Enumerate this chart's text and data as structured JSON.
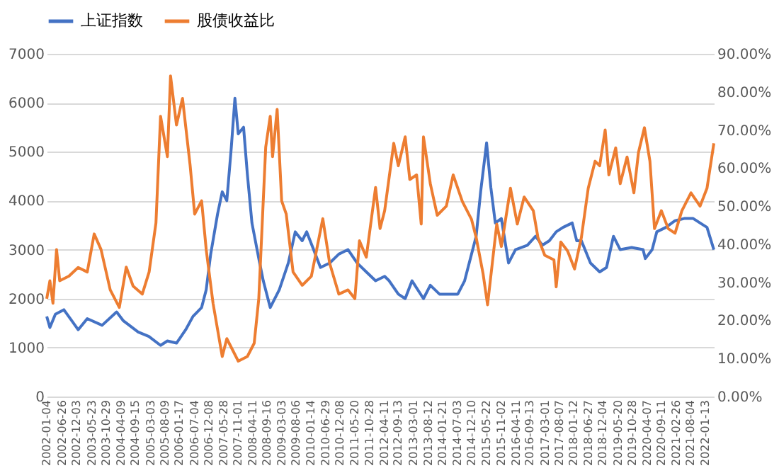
{
  "chart_data": {
    "type": "line",
    "legend": "top",
    "grid": "y",
    "line_style": "solid",
    "marker": "none",
    "xlim": [
      "2002-01-04",
      "2022-04-18"
    ],
    "xticks": [
      "2002-01-04",
      "2002-06-26",
      "2002-12-03",
      "2003-05-23",
      "2003-10-29",
      "2004-04-09",
      "2004-09-15",
      "2005-03-03",
      "2005-08-09",
      "2006-01-17",
      "2006-07-04",
      "2006-12-08",
      "2007-05-28",
      "2007-11-01",
      "2008-04-11",
      "2008-09-16",
      "2009-03-03",
      "2009-08-06",
      "2010-01-14",
      "2010-06-29",
      "2010-12-08",
      "2011-05-20",
      "2011-10-28",
      "2012-04-11",
      "2012-09-13",
      "2013-03-01",
      "2013-08-12",
      "2014-01-21",
      "2014-07-03",
      "2014-12-10",
      "2015-05-22",
      "2015-11-02",
      "2016-04-11",
      "2016-09-13",
      "2017-03-01",
      "2017-08-07",
      "2018-01-12",
      "2018-06-27",
      "2018-12-04",
      "2019-05-20",
      "2019-10-28",
      "2020-04-07",
      "2020-09-11",
      "2021-02-26",
      "2021-08-04",
      "2022-01-13"
    ],
    "ylim": [
      0,
      7000
    ],
    "yticks": [
      0,
      1000,
      2000,
      3000,
      4000,
      5000,
      6000,
      7000
    ],
    "y2lim": [
      0,
      90
    ],
    "y2ticks": [
      {
        "value": 0,
        "label": "0.00%"
      },
      {
        "value": 10,
        "label": "10.00%"
      },
      {
        "value": 20,
        "label": "20.00%"
      },
      {
        "value": 30,
        "label": "30.00%"
      },
      {
        "value": 40,
        "label": "40.00%"
      },
      {
        "value": 50,
        "label": "50.00%"
      },
      {
        "value": 60,
        "label": "60.00%"
      },
      {
        "value": 70,
        "label": "70.00%"
      },
      {
        "value": 80,
        "label": "80.00%"
      },
      {
        "value": 90,
        "label": "90.00%"
      }
    ],
    "series": [
      {
        "name": "上证指数",
        "color": "#4472c4",
        "x": [
          "2002-01-04",
          "2002-02-08",
          "2002-04-10",
          "2002-07-13",
          "2002-10-10",
          "2002-12-19",
          "2003-03-30",
          "2003-09-11",
          "2004-02-19",
          "2004-05-05",
          "2004-10-15",
          "2005-02-11",
          "2005-06-21",
          "2005-09-05",
          "2005-12-15",
          "2006-03-27",
          "2006-06-16",
          "2006-09-20",
          "2006-11-10",
          "2006-12-30",
          "2007-03-16",
          "2007-05-07",
          "2007-06-27",
          "2007-08-16",
          "2007-09-25",
          "2007-11-01",
          "2007-12-30",
          "2008-02-10",
          "2008-04-01",
          "2008-06-16",
          "2008-08-05",
          "2008-10-21",
          "2009-01-30",
          "2009-05-10",
          "2009-07-26",
          "2009-10-11",
          "2009-11-30",
          "2010-02-15",
          "2010-05-02",
          "2010-08-12",
          "2010-11-22",
          "2011-03-04",
          "2011-06-13",
          "2011-09-23",
          "2012-01-04",
          "2012-04-14",
          "2012-06-03",
          "2012-09-13",
          "2012-11-28",
          "2013-02-12",
          "2013-06-19",
          "2013-09-03",
          "2013-12-14",
          "2014-03-25",
          "2014-07-05",
          "2014-09-19",
          "2014-12-05",
          "2015-01-25",
          "2015-03-16",
          "2015-05-21",
          "2015-07-07",
          "2015-08-26",
          "2015-11-01",
          "2016-01-20",
          "2016-04-06",
          "2016-08-16",
          "2016-11-15",
          "2017-01-30",
          "2017-04-17",
          "2017-07-02",
          "2017-09-16",
          "2017-12-27",
          "2018-02-15",
          "2018-04-08",
          "2018-07-18",
          "2018-10-28",
          "2019-01-12",
          "2019-03-30",
          "2019-06-13",
          "2019-10-18",
          "2020-02-22",
          "2020-03-18",
          "2020-06-02",
          "2020-07-23",
          "2020-11-01",
          "2021-02-11",
          "2021-05-23",
          "2021-09-01",
          "2021-11-16",
          "2022-02-01",
          "2022-04-18"
        ],
        "values": [
          1636,
          1409,
          1682,
          1773,
          1545,
          1364,
          1591,
          1455,
          1727,
          1545,
          1318,
          1227,
          1045,
          1136,
          1091,
          1364,
          1636,
          1818,
          2182,
          2909,
          3727,
          4182,
          4000,
          5091,
          6091,
          5364,
          5500,
          4545,
          3545,
          2818,
          2364,
          1818,
          2182,
          2727,
          3364,
          3182,
          3364,
          3000,
          2636,
          2727,
          2909,
          3000,
          2727,
          2545,
          2364,
          2455,
          2364,
          2091,
          2000,
          2364,
          2000,
          2273,
          2091,
          2091,
          2091,
          2364,
          2909,
          3273,
          4182,
          5182,
          4273,
          3545,
          3636,
          2727,
          3000,
          3091,
          3273,
          3091,
          3182,
          3364,
          3455,
          3545,
          3182,
          3182,
          2727,
          2545,
          2636,
          3273,
          3000,
          3045,
          3000,
          2818,
          3000,
          3364,
          3455,
          3591,
          3636,
          3636,
          3545,
          3455,
          3000
        ]
      },
      {
        "name": "股债收益比",
        "color": "#ed7d31",
        "axis": "y2",
        "x": [
          "2002-01-04",
          "2002-02-08",
          "2002-03-14",
          "2002-04-23",
          "2002-05-28",
          "2002-09-07",
          "2002-12-19",
          "2003-03-30",
          "2003-06-15",
          "2003-08-30",
          "2003-12-10",
          "2004-03-20",
          "2004-06-05",
          "2004-08-20",
          "2004-11-30",
          "2005-02-14",
          "2005-05-01",
          "2005-06-21",
          "2005-09-05",
          "2005-10-10",
          "2005-12-15",
          "2006-02-20",
          "2006-05-15",
          "2006-07-05",
          "2006-09-20",
          "2006-11-10",
          "2007-01-25",
          "2007-05-07",
          "2007-06-27",
          "2007-11-01",
          "2008-02-10",
          "2008-04-26",
          "2008-06-16",
          "2008-09-01",
          "2008-10-21",
          "2008-11-16",
          "2009-01-06",
          "2009-02-25",
          "2009-04-17",
          "2009-07-02",
          "2009-10-11",
          "2010-01-21",
          "2010-05-28",
          "2010-08-12",
          "2010-11-22",
          "2011-03-04",
          "2011-05-19",
          "2011-07-09",
          "2011-09-23",
          "2012-01-04",
          "2012-02-23",
          "2012-04-14",
          "2012-07-24",
          "2012-09-13",
          "2012-11-28",
          "2013-01-18",
          "2013-04-04",
          "2013-05-25",
          "2013-06-19",
          "2013-09-03",
          "2013-11-19",
          "2014-02-28",
          "2014-05-15",
          "2014-08-25",
          "2014-12-05",
          "2015-01-25",
          "2015-04-11",
          "2015-06-01",
          "2015-07-22",
          "2015-09-11",
          "2015-11-01",
          "2016-02-10",
          "2016-04-26",
          "2016-07-11",
          "2016-10-21",
          "2016-12-11",
          "2017-02-25",
          "2017-06-07",
          "2017-07-02",
          "2017-08-22",
          "2017-11-06",
          "2018-01-22",
          "2018-04-08",
          "2018-06-23",
          "2018-09-07",
          "2018-10-28",
          "2018-12-28",
          "2019-02-07",
          "2019-04-24",
          "2019-06-13",
          "2019-08-28",
          "2019-11-12",
          "2020-01-02",
          "2020-03-08",
          "2020-05-08",
          "2020-06-28",
          "2020-09-12",
          "2020-11-27",
          "2021-02-11",
          "2021-04-28",
          "2021-08-07",
          "2021-11-16",
          "2022-02-01",
          "2022-04-18"
        ],
        "values": [
          25.7,
          30.4,
          24.5,
          38.6,
          30.4,
          31.6,
          33.9,
          32.7,
          42.7,
          38.6,
          28,
          23.4,
          34,
          29,
          26.9,
          32.7,
          45.6,
          73.6,
          63,
          84.2,
          71.3,
          78.3,
          60.8,
          47.9,
          51.4,
          38.6,
          24.5,
          10.5,
          15.2,
          9.3,
          10.5,
          14,
          25.7,
          65.5,
          73.6,
          63,
          75.4,
          51.4,
          47.9,
          32.7,
          29.2,
          31.6,
          46.7,
          35,
          26.9,
          28,
          25.7,
          40.9,
          36.6,
          54.9,
          44.1,
          48.8,
          66.5,
          60.6,
          68.2,
          57,
          58.2,
          45.3,
          68.2,
          55.9,
          47.6,
          50,
          58.2,
          51.2,
          46.5,
          41.8,
          32.4,
          24.1,
          34.7,
          45.3,
          39.4,
          54.7,
          45.3,
          52.4,
          48.8,
          41.8,
          37.1,
          35.9,
          28.8,
          40.6,
          38.2,
          33.5,
          41.8,
          54.7,
          61.8,
          60.6,
          70,
          58.2,
          65.3,
          55.9,
          62.9,
          53.5,
          64.1,
          70.6,
          61.8,
          44.1,
          48.8,
          44.1,
          42.9,
          48.8,
          53.5,
          50,
          54.7,
          66.5
        ]
      }
    ]
  }
}
